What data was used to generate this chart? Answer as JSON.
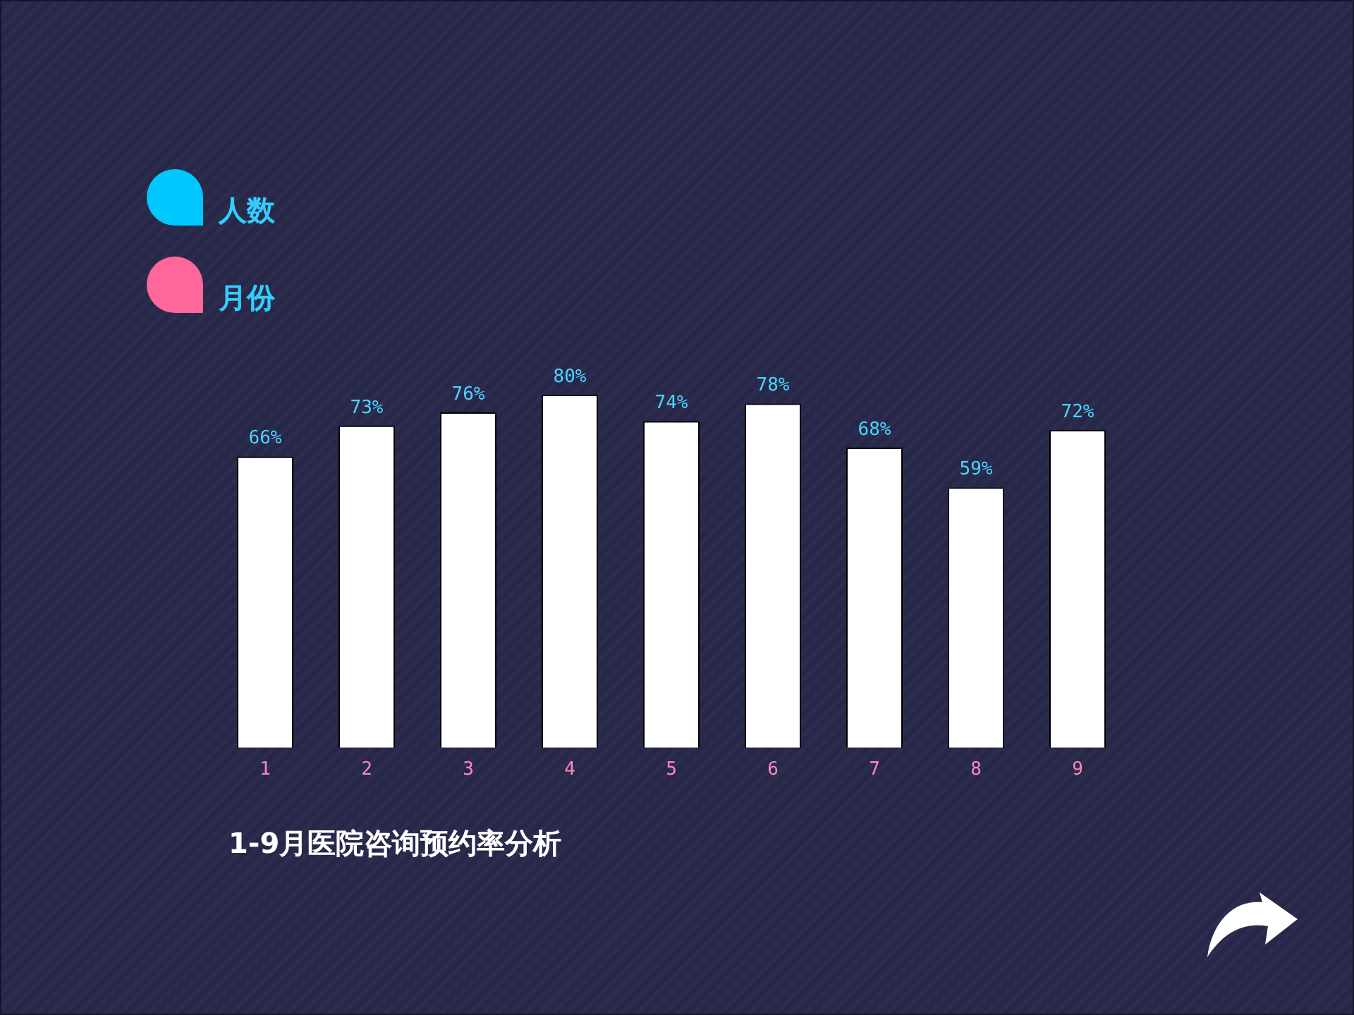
{
  "chart_data": {
    "type": "bar",
    "title": "1-9月医院咨询预约率分析",
    "categories": [
      "1",
      "2",
      "3",
      "4",
      "5",
      "6",
      "7",
      "8",
      "9"
    ],
    "values": [
      66,
      73,
      76,
      80,
      74,
      78,
      68,
      59,
      72
    ],
    "value_labels": [
      "66%",
      "73%",
      "76%",
      "80%",
      "74%",
      "78%",
      "68%",
      "59%",
      "72%"
    ],
    "color": "#ffffff",
    "tick_labels": "x",
    "annotations": [
      "人数",
      "月份"
    ]
  }
}
